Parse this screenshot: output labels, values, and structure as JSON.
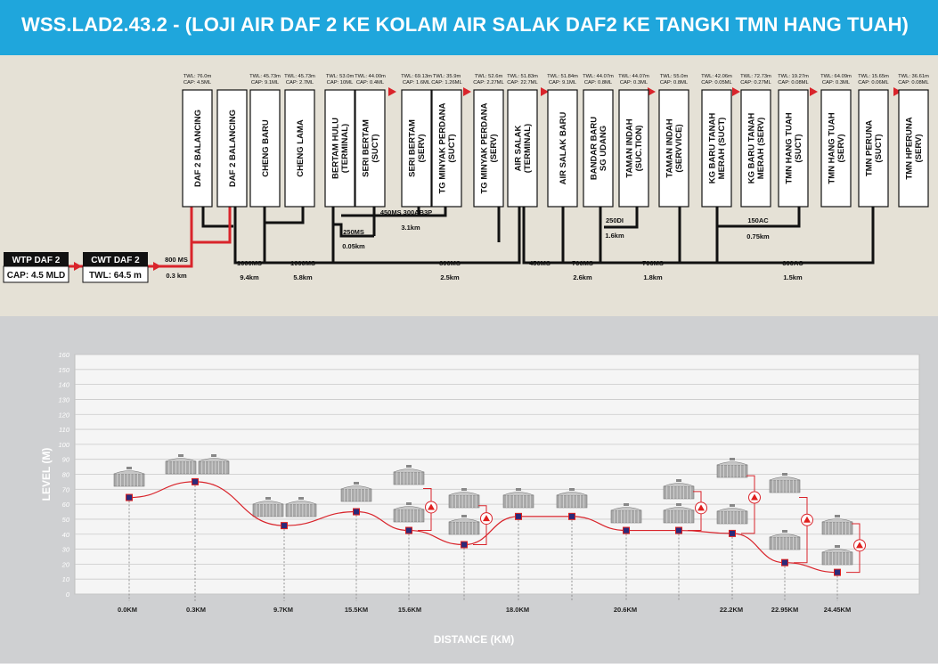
{
  "header": {
    "title": "WSS.LAD2.43.2 - (LOJI AIR DAF 2 KE KOLAM AIR SALAK DAF2 KE TANGKI TMN HANG TUAH)",
    "bg_color": "#1fa6dc"
  },
  "colors": {
    "network_bg": "#e5e1d6",
    "profile_bg": "#cfd0d2",
    "pipe_red": "#d9242b",
    "pipe_black": "#111111",
    "marker_blue": "#2a2a7a",
    "marker_red": "#e0201e"
  },
  "sources": [
    {
      "name": "WTP DAF 2",
      "info": "CAP: 4.5 MLD"
    },
    {
      "name": "CWT DAF 2",
      "info": "TWL: 64.5 m"
    }
  ],
  "reservoirs": [
    {
      "name1": "DAF 2 BALANCING",
      "name2": "",
      "twl": "TWL: 76.0m",
      "cap": "CAP: 4.5ML"
    },
    {
      "name1": "DAF 2 BALANCING",
      "name2": "",
      "twl": "",
      "cap": ""
    },
    {
      "name1": "CHENG BARU",
      "name2": "",
      "twl": "TWL: 45.73m",
      "cap": "CAP: 9.1ML"
    },
    {
      "name1": "CHENG LAMA",
      "name2": "",
      "twl": "TWL: 45.73m",
      "cap": "CAP: 2.7ML"
    },
    {
      "name1": "BERTAM HULU",
      "name2": "(TERMINAL)",
      "twl": "TWL: 53.0m",
      "cap": "CAP: 10ML"
    },
    {
      "name1": "SERI BERTAM",
      "name2": "(SUCT)",
      "twl": "TWL: 44.00m",
      "cap": "CAP: 0.4ML"
    },
    {
      "name1": "SERI BERTAM",
      "name2": "(SERV)",
      "twl": "TWL: 69.13m",
      "cap": "CAP: 1.6ML"
    },
    {
      "name1": "TG MINYAK PERDANA",
      "name2": "(SUCT)",
      "twl": "TWL: 35.9m",
      "cap": "CAP: 1.26ML"
    },
    {
      "name1": "TG MINYAK PERDANA",
      "name2": "(SERV)",
      "twl": "TWL: 52.6m",
      "cap": "CAP: 2.27ML"
    },
    {
      "name1": "AIR SALAK",
      "name2": "(TERMINAL)",
      "twl": "TWL: 51.83m",
      "cap": "CAP: 22.7ML"
    },
    {
      "name1": "AIR SALAK BARU",
      "name2": "",
      "twl": "TWL: 51.84m",
      "cap": "CAP: 9.1ML"
    },
    {
      "name1": "BANDAR BARU",
      "name2": "SG UDANG",
      "twl": "TWL: 44.07m",
      "cap": "CAP: 0.8ML"
    },
    {
      "name1": "TAMAN INDAH",
      "name2": "(SUC.TION)",
      "twl": "TWL: 44.07m",
      "cap": "CAP: 0.3ML"
    },
    {
      "name1": "TAMAN INDAH",
      "name2": "(SERVVICE)",
      "twl": "TWL: 55.0m",
      "cap": "CAP: 0.8ML"
    },
    {
      "name1": "KG BARU TANAH",
      "name2": "MERAH (SUCT)",
      "twl": "TWL: 42.06m",
      "cap": "CAP: 0.05ML"
    },
    {
      "name1": "KG BARU TANAH",
      "name2": "MERAH (SERV)",
      "twl": "TWL: 72.73m",
      "cap": "CAP: 0.27ML"
    },
    {
      "name1": "TMN HANG TUAH",
      "name2": "(SUCT)",
      "twl": "TWL: 19.27m",
      "cap": "CAP: 0.08ML"
    },
    {
      "name1": "TMN HANG TUAH",
      "name2": "(SERV)",
      "twl": "TWL: 64.09m",
      "cap": "CAP: 0.3ML"
    },
    {
      "name1": "TMN PERUNA",
      "name2": "(SUCT)",
      "twl": "TWL: 15.65m",
      "cap": "CAP: 0.06ML"
    },
    {
      "name1": "TMN HPERUNA",
      "name2": "(SERV)",
      "twl": "TWL: 36.61m",
      "cap": "CAP: 0.08ML"
    }
  ],
  "pipe_labels": [
    "800 MS",
    "0.3 km",
    "1000MS",
    "9.4km",
    "1000MS",
    "5.8km",
    "800MS",
    "2.5km",
    "450MS",
    "700MS",
    "2.6km",
    "700MS",
    "1.8km",
    "300AC",
    "1.5km",
    "250MS",
    "0.05km",
    "450MS 300AB3P",
    "3.1km",
    "250DI",
    "1.6km",
    "150AC",
    "0.75km"
  ],
  "chart_data": {
    "type": "line",
    "ylabel": "LEVEL (M)",
    "xlabel": "DISTANCE (KM)",
    "ylim": [
      0,
      160
    ],
    "yticks": [
      "0",
      "10",
      "20",
      "30",
      "40",
      "50",
      "60",
      "70",
      "80",
      "90",
      "100",
      "110",
      "120",
      "130",
      "140",
      "150",
      "160"
    ],
    "xticks": [
      "0.0KM",
      "0.3KM",
      "9.7KM",
      "15.5KM",
      "15.6KM",
      "18.0KM",
      "20.6KM",
      "22.2KM",
      "22.95KM",
      "24.45KM"
    ],
    "grid": true,
    "profile_points": [
      64.5,
      75,
      45.73,
      55,
      42.5,
      33,
      51.83,
      51.84,
      42.5,
      42.5,
      40.5,
      21,
      14.5
    ],
    "pump_levels": [
      58,
      50.5,
      57.5,
      64.5,
      49.5,
      32.5
    ]
  }
}
